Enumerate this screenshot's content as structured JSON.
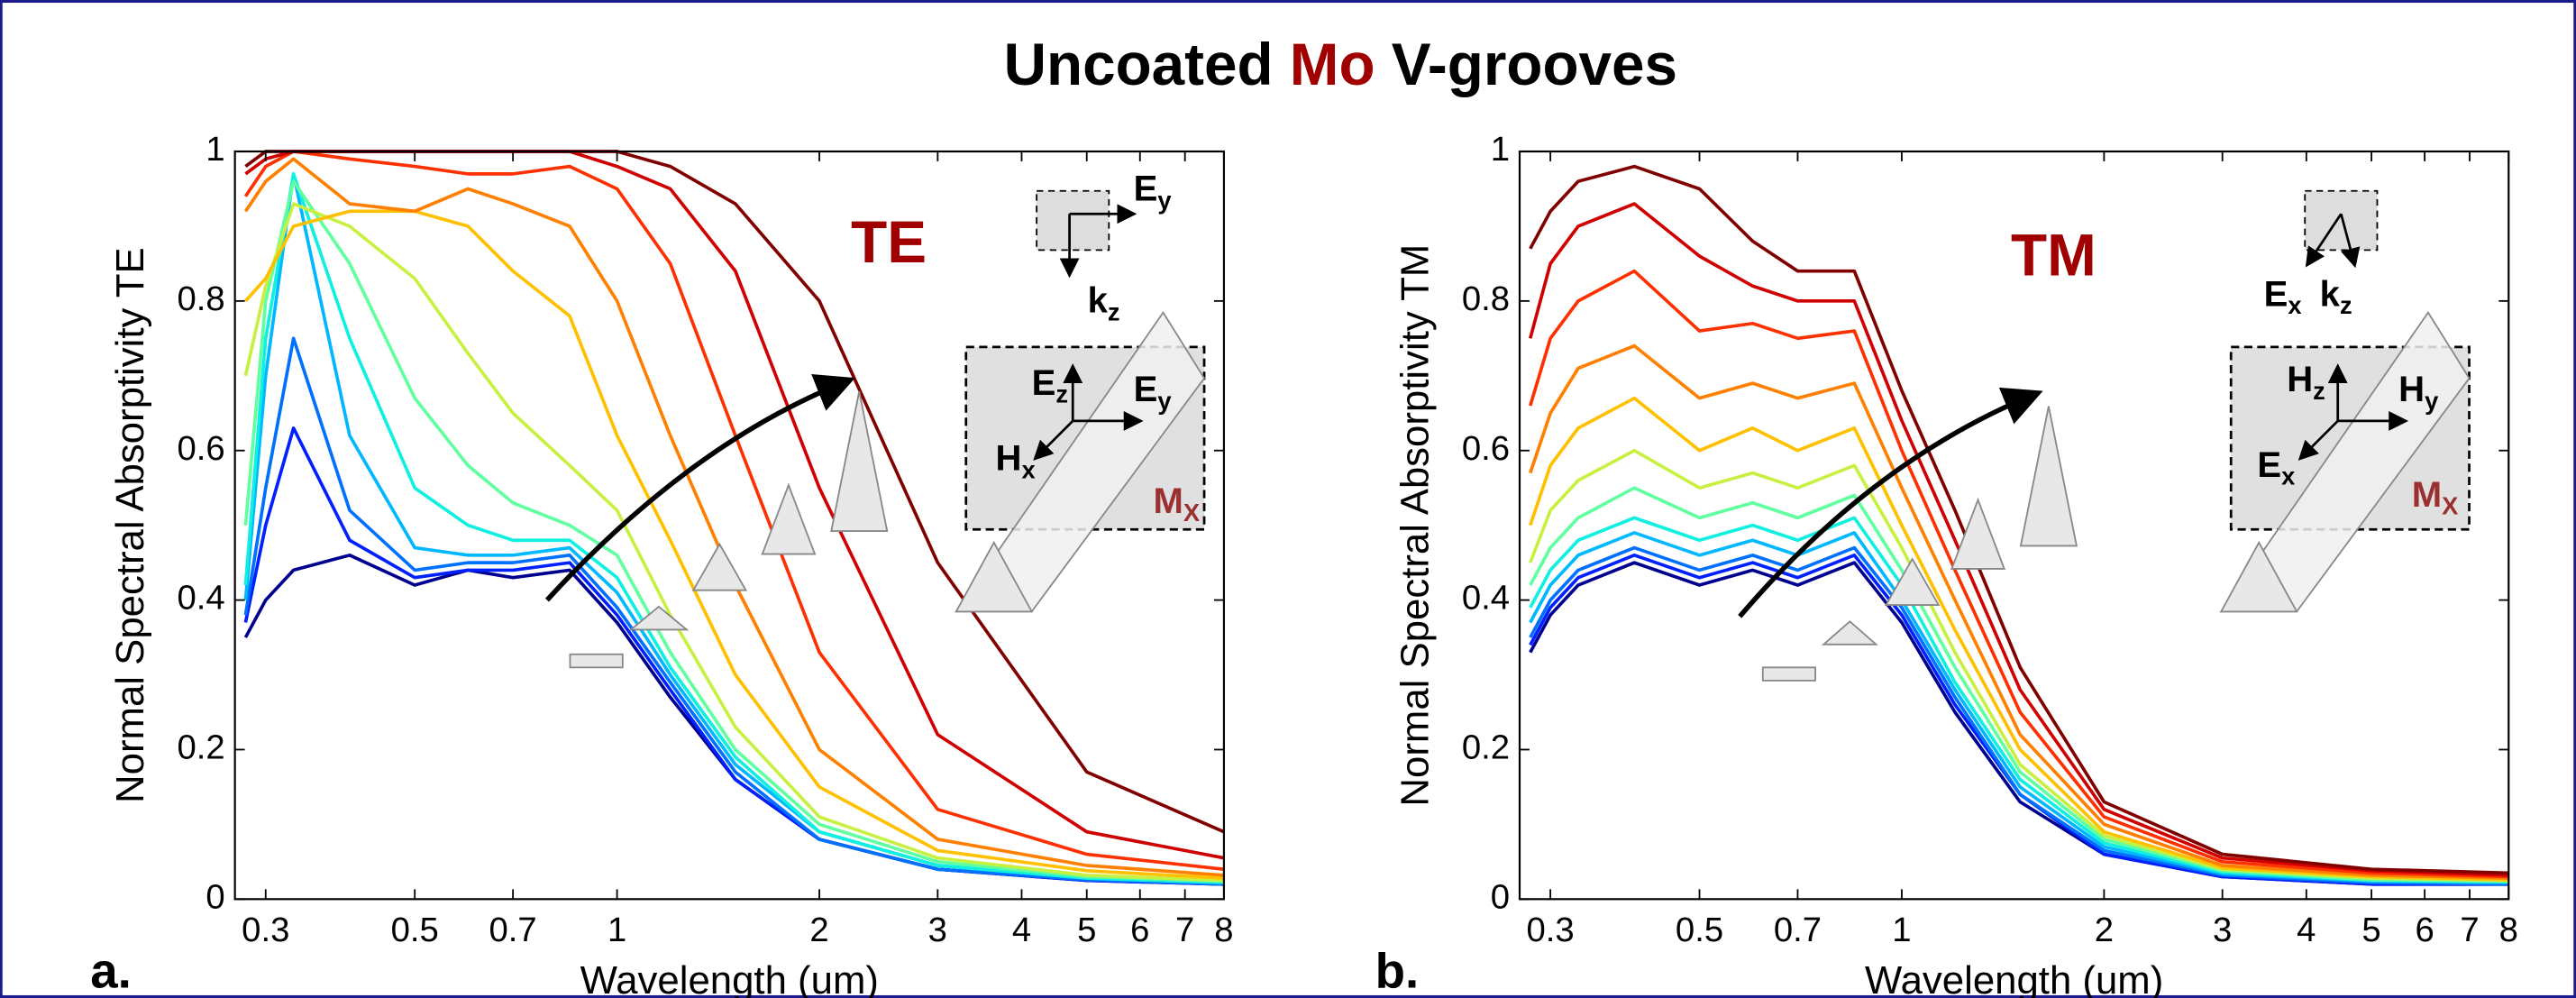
{
  "title_parts": [
    "Uncoated",
    "Mo",
    "V-grooves"
  ],
  "chart_data": [
    {
      "type": "line",
      "panel_label": "a.",
      "annotation": "TE",
      "x_label": "Wavelength (um)",
      "y_label": "Normal Spectral Absorptivity TE",
      "log_x": true,
      "xlim": [
        0.27,
        8
      ],
      "ylim": [
        0,
        1
      ],
      "xticks": [
        0.3,
        0.5,
        0.7,
        1,
        2,
        3,
        4,
        5,
        6,
        7,
        8
      ],
      "yticks": [
        0,
        0.2,
        0.4,
        0.6,
        0.8,
        1
      ],
      "inset_labels": [
        {
          "text": "E",
          "sub": "y"
        },
        {
          "text": "k",
          "sub": "z"
        },
        {
          "text": "E",
          "sub": "z"
        },
        {
          "text": "E",
          "sub": "y"
        },
        {
          "text": "H",
          "sub": "x"
        },
        {
          "text": "M",
          "sub": "X"
        }
      ],
      "x": [
        0.28,
        0.3,
        0.33,
        0.4,
        0.5,
        0.6,
        0.7,
        0.85,
        1,
        1.2,
        1.5,
        2,
        3,
        5,
        8
      ],
      "series": [
        {
          "color": "#000090",
          "values": [
            0.35,
            0.4,
            0.44,
            0.46,
            0.42,
            0.44,
            0.43,
            0.44,
            0.37,
            0.27,
            0.16,
            0.08,
            0.04,
            0.025,
            0.02
          ]
        },
        {
          "color": "#0020ff",
          "values": [
            0.37,
            0.5,
            0.63,
            0.48,
            0.43,
            0.44,
            0.44,
            0.45,
            0.38,
            0.28,
            0.16,
            0.08,
            0.04,
            0.025,
            0.02
          ]
        },
        {
          "color": "#0070ff",
          "values": [
            0.38,
            0.55,
            0.75,
            0.52,
            0.44,
            0.45,
            0.45,
            0.46,
            0.39,
            0.29,
            0.17,
            0.08,
            0.04,
            0.026,
            0.02
          ]
        },
        {
          "color": "#00b8ff",
          "values": [
            0.4,
            0.7,
            0.97,
            0.62,
            0.47,
            0.46,
            0.46,
            0.47,
            0.41,
            0.3,
            0.18,
            0.09,
            0.045,
            0.028,
            0.022
          ]
        },
        {
          "color": "#10f0e0",
          "values": [
            0.42,
            0.75,
            0.97,
            0.75,
            0.55,
            0.5,
            0.48,
            0.48,
            0.43,
            0.31,
            0.19,
            0.09,
            0.045,
            0.028,
            0.022
          ]
        },
        {
          "color": "#60ffa0",
          "values": [
            0.5,
            0.8,
            0.96,
            0.85,
            0.67,
            0.58,
            0.53,
            0.5,
            0.46,
            0.33,
            0.2,
            0.1,
            0.05,
            0.03,
            0.024
          ]
        },
        {
          "color": "#c8f040",
          "values": [
            0.7,
            0.82,
            0.93,
            0.9,
            0.83,
            0.73,
            0.65,
            0.58,
            0.52,
            0.38,
            0.23,
            0.11,
            0.055,
            0.032,
            0.025
          ]
        },
        {
          "color": "#ffc000",
          "values": [
            0.8,
            0.83,
            0.9,
            0.92,
            0.92,
            0.9,
            0.84,
            0.78,
            0.62,
            0.48,
            0.3,
            0.15,
            0.065,
            0.038,
            0.028
          ]
        },
        {
          "color": "#ff8000",
          "values": [
            0.92,
            0.96,
            0.99,
            0.93,
            0.92,
            0.95,
            0.93,
            0.9,
            0.8,
            0.62,
            0.42,
            0.2,
            0.08,
            0.045,
            0.032
          ]
        },
        {
          "color": "#ff3000",
          "values": [
            0.94,
            0.98,
            1.0,
            0.99,
            0.98,
            0.97,
            0.97,
            0.98,
            0.95,
            0.85,
            0.62,
            0.33,
            0.12,
            0.06,
            0.04
          ]
        },
        {
          "color": "#d00000",
          "values": [
            0.97,
            0.99,
            1.0,
            1.0,
            1.0,
            1.0,
            1.0,
            1.0,
            0.98,
            0.95,
            0.84,
            0.55,
            0.22,
            0.09,
            0.055
          ]
        },
        {
          "color": "#800000",
          "values": [
            0.98,
            1.0,
            1.0,
            1.0,
            1.0,
            1.0,
            1.0,
            1.0,
            1.0,
            0.98,
            0.93,
            0.8,
            0.45,
            0.17,
            0.09
          ]
        }
      ]
    },
    {
      "type": "line",
      "panel_label": "b.",
      "annotation": "TM",
      "x_label": "Wavelength (um)",
      "y_label": "Normal Spectral Absorptivity TM",
      "log_x": true,
      "xlim": [
        0.27,
        8
      ],
      "ylim": [
        0,
        1
      ],
      "xticks": [
        0.3,
        0.5,
        0.7,
        1,
        2,
        3,
        4,
        5,
        6,
        7,
        8
      ],
      "yticks": [
        0,
        0.2,
        0.4,
        0.6,
        0.8,
        1
      ],
      "inset_labels": [
        {
          "text": "E",
          "sub": "x"
        },
        {
          "text": "k",
          "sub": "z"
        },
        {
          "text": "H",
          "sub": "z"
        },
        {
          "text": "H",
          "sub": "y"
        },
        {
          "text": "E",
          "sub": "x"
        },
        {
          "text": "M",
          "sub": "X"
        }
      ],
      "x": [
        0.28,
        0.3,
        0.33,
        0.4,
        0.5,
        0.6,
        0.7,
        0.85,
        1,
        1.2,
        1.5,
        2,
        3,
        5,
        8
      ],
      "series": [
        {
          "color": "#000090",
          "values": [
            0.33,
            0.38,
            0.42,
            0.45,
            0.42,
            0.44,
            0.42,
            0.45,
            0.37,
            0.25,
            0.13,
            0.06,
            0.03,
            0.02,
            0.02
          ]
        },
        {
          "color": "#0020ff",
          "values": [
            0.34,
            0.39,
            0.43,
            0.46,
            0.43,
            0.45,
            0.43,
            0.46,
            0.38,
            0.26,
            0.14,
            0.06,
            0.03,
            0.02,
            0.02
          ]
        },
        {
          "color": "#0070ff",
          "values": [
            0.35,
            0.4,
            0.44,
            0.47,
            0.44,
            0.46,
            0.44,
            0.47,
            0.39,
            0.27,
            0.14,
            0.065,
            0.032,
            0.022,
            0.02
          ]
        },
        {
          "color": "#00b8ff",
          "values": [
            0.37,
            0.42,
            0.46,
            0.49,
            0.46,
            0.48,
            0.46,
            0.49,
            0.4,
            0.28,
            0.15,
            0.07,
            0.034,
            0.024,
            0.022
          ]
        },
        {
          "color": "#10f0e0",
          "values": [
            0.39,
            0.44,
            0.48,
            0.51,
            0.48,
            0.5,
            0.48,
            0.51,
            0.42,
            0.29,
            0.16,
            0.075,
            0.036,
            0.025,
            0.023
          ]
        },
        {
          "color": "#60ffa0",
          "values": [
            0.42,
            0.47,
            0.51,
            0.55,
            0.51,
            0.53,
            0.51,
            0.54,
            0.44,
            0.31,
            0.17,
            0.08,
            0.038,
            0.026,
            0.024
          ]
        },
        {
          "color": "#c8f040",
          "values": [
            0.45,
            0.52,
            0.56,
            0.6,
            0.55,
            0.57,
            0.55,
            0.58,
            0.47,
            0.33,
            0.18,
            0.085,
            0.04,
            0.028,
            0.025
          ]
        },
        {
          "color": "#ffc000",
          "values": [
            0.5,
            0.58,
            0.63,
            0.67,
            0.6,
            0.63,
            0.6,
            0.63,
            0.5,
            0.36,
            0.2,
            0.09,
            0.042,
            0.03,
            0.026
          ]
        },
        {
          "color": "#ff8000",
          "values": [
            0.57,
            0.65,
            0.71,
            0.74,
            0.67,
            0.69,
            0.67,
            0.69,
            0.55,
            0.4,
            0.22,
            0.1,
            0.045,
            0.032,
            0.028
          ]
        },
        {
          "color": "#ff3000",
          "values": [
            0.66,
            0.75,
            0.8,
            0.84,
            0.76,
            0.77,
            0.75,
            0.76,
            0.6,
            0.44,
            0.25,
            0.11,
            0.05,
            0.035,
            0.03
          ]
        },
        {
          "color": "#d00000",
          "values": [
            0.75,
            0.85,
            0.9,
            0.93,
            0.86,
            0.82,
            0.8,
            0.8,
            0.64,
            0.48,
            0.28,
            0.12,
            0.055,
            0.038,
            0.032
          ]
        },
        {
          "color": "#800000",
          "values": [
            0.87,
            0.92,
            0.96,
            0.98,
            0.95,
            0.88,
            0.84,
            0.84,
            0.68,
            0.52,
            0.31,
            0.13,
            0.06,
            0.04,
            0.035
          ]
        }
      ]
    }
  ]
}
